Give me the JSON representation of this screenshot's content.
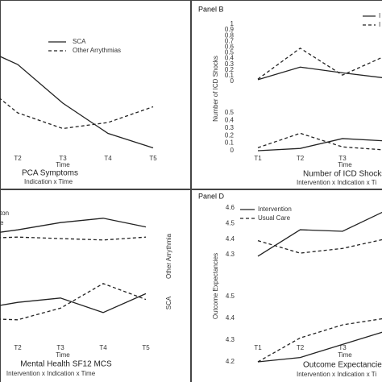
{
  "chart_data": [
    {
      "type": "line",
      "title": "PCA Symptoms",
      "xlabel": "Time",
      "subtitle": "Indication x Time",
      "categories": [
        null,
        "T2",
        "T3",
        "T4",
        "T5"
      ],
      "ylim": [
        0,
        10
      ],
      "color": "#222",
      "legend": [
        {
          "label": "SCA",
          "dash": false
        },
        {
          "label": "Other Arrythmias",
          "dash": true
        }
      ],
      "series": [
        {
          "dash": false,
          "values": [
            8.7,
            7,
            3.8,
            1.3,
            0.1
          ]
        },
        {
          "dash": true,
          "values": [
            6,
            3,
            1.7,
            2.2,
            3.5
          ]
        }
      ]
    },
    {
      "type": "line",
      "panel": "Panel B",
      "title": "Number of ICD Shocks",
      "xlabel": "Time",
      "subtitle": "Intervention x Indication x Ti",
      "ylabel": "Number of ICD Shocks",
      "categories": [
        "T1",
        "T2",
        "T3",
        null
      ],
      "color": "#222",
      "ylim": [
        0,
        1
      ],
      "yticks": [
        0,
        0.1,
        0.2,
        0.3,
        0.4,
        0.5,
        0.6,
        0.7,
        0.8,
        0.9,
        1
      ],
      "y2lim": [
        0,
        0.5
      ],
      "y2ticks": [
        0,
        0.1,
        0.2,
        0.3,
        0.4,
        0.5
      ],
      "legend": [
        {
          "label": "I",
          "dash": false
        },
        {
          "label": "I",
          "dash": true
        }
      ],
      "series": [
        {
          "dash": false,
          "values": [
            0.03,
            0.25,
            0.15,
            0.06
          ]
        },
        {
          "dash": true,
          "values": [
            0.04,
            0.58,
            0.11,
            0.44
          ]
        },
        {
          "dash": false,
          "axis": "y2",
          "values": [
            0,
            0.03,
            0.16,
            0.13
          ]
        },
        {
          "dash": true,
          "axis": "y2",
          "values": [
            0.04,
            0.23,
            0.05,
            0.01
          ]
        }
      ]
    },
    {
      "type": "line",
      "title": "Mental Health SF12 MCS",
      "xlabel": "Time",
      "subtitle": "Intervention x Indication x Time",
      "categories": [
        null,
        "T2",
        "T3",
        "T4",
        "T5"
      ],
      "ylim": [
        0,
        10
      ],
      "color": "#222",
      "legend": [
        {
          "label": "ton",
          "dash": false
        },
        {
          "label": "e",
          "dash": true
        }
      ],
      "side_labels": [
        "Other Arrythmia",
        "SCA"
      ],
      "series": [
        {
          "dash": false,
          "values": [
            8.2,
            8.6,
            9.1,
            9.4,
            8.8
          ]
        },
        {
          "dash": true,
          "values": [
            8.0,
            8.1,
            8.0,
            7.9,
            8.1
          ]
        },
        {
          "dash": false,
          "values": [
            3.1,
            3.6,
            3.9,
            2.9,
            4.2
          ]
        },
        {
          "dash": true,
          "values": [
            2.5,
            2.4,
            3.2,
            4.9,
            3.8
          ]
        }
      ]
    },
    {
      "type": "line",
      "panel": "Panel D",
      "title": "Outcome Expectancies",
      "xlabel": "Time",
      "subtitle": "Intervention x Indication x Ti",
      "ylabel": "Outcome Expectancies",
      "categories": [
        "T1",
        "T2",
        "T3",
        null
      ],
      "color": "#222",
      "ylim": [
        4.3,
        4.6
      ],
      "yticks": [
        4.3,
        4.4,
        4.5,
        4.6
      ],
      "y2lim": [
        4.2,
        4.5
      ],
      "y2ticks": [
        4.2,
        4.3,
        4.4,
        4.5
      ],
      "legend": [
        {
          "label": "Intervention",
          "dash": false
        },
        {
          "label": "Usual Care",
          "dash": true
        }
      ],
      "series": [
        {
          "dash": false,
          "values": [
            4.29,
            4.46,
            4.45,
            4.58
          ]
        },
        {
          "dash": true,
          "values": [
            4.39,
            4.31,
            4.34,
            4.4
          ]
        },
        {
          "dash": false,
          "axis": "y2",
          "values": [
            4.2,
            4.22,
            4.28,
            4.34
          ]
        },
        {
          "dash": true,
          "axis": "y2",
          "values": [
            4.2,
            4.31,
            4.37,
            4.4
          ]
        }
      ]
    }
  ]
}
